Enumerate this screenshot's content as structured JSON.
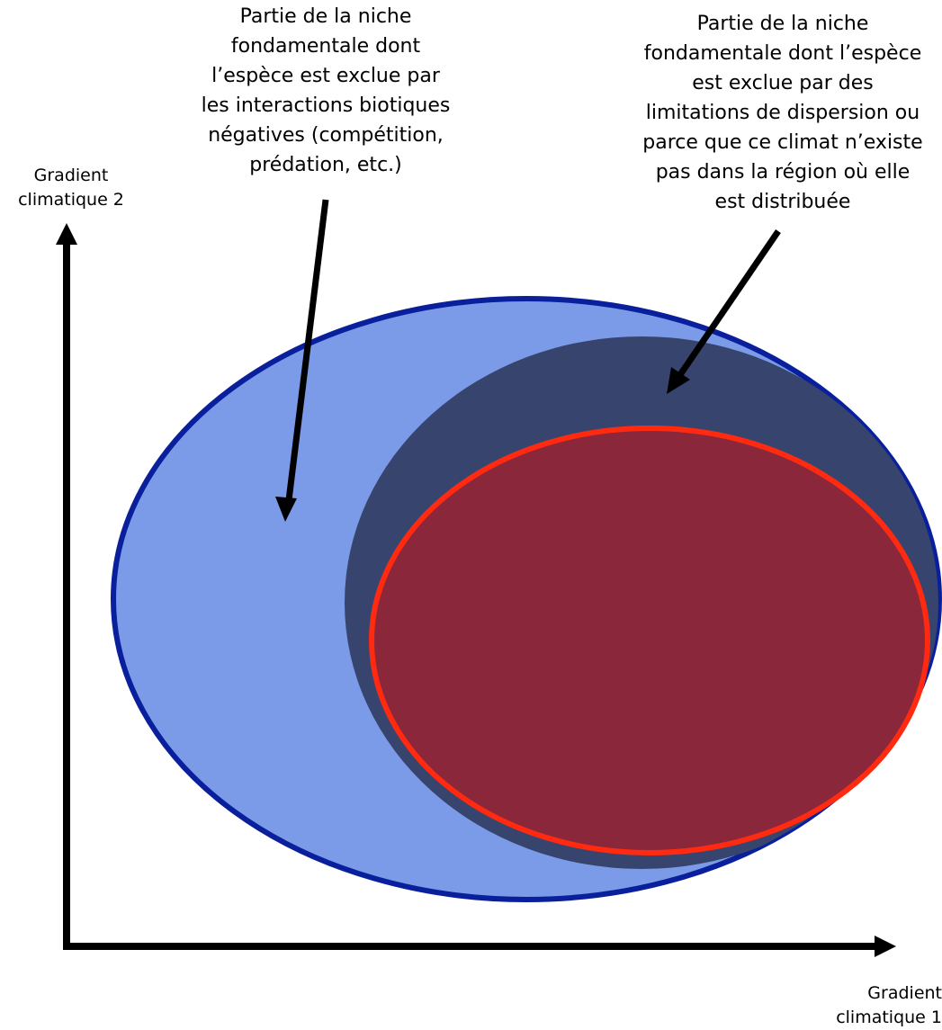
{
  "diagram": {
    "annotations": {
      "competition_zone": "Partie de la niche\nfondamentale dont\nl’espèce est exclue par\nles interactions biotiques\nnégatives (compétition,\nprédation, etc.)",
      "dispersal_zone": "Partie de la niche\nfondamentale dont l’espèce\nest exclue par des\nlimitations de dispersion ou\nparce que ce climat n’existe\npas dans la région où elle\nest distribuée"
    },
    "axes": {
      "x_label": "Gradient\nclimatique 1",
      "y_label": "Gradient\nclimatique 2"
    },
    "colors": {
      "fundamental_fill": "#7b9be8",
      "fundamental_stroke": "#0a1f9c",
      "potential_fill": "#37456e",
      "realized_fill": "#8b273b",
      "realized_stroke": "#ff2a10",
      "arrow": "#000000"
    }
  }
}
